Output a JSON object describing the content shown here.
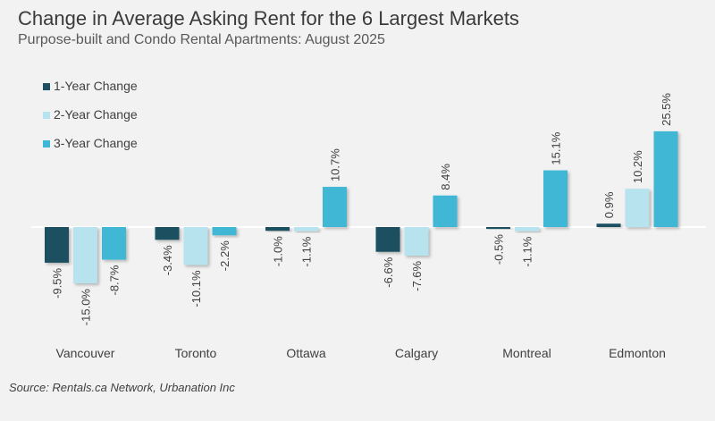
{
  "title": "Change in Average Asking Rent for the 6 Largest Markets",
  "subtitle": "Purpose-built and Condo Rental Apartments: August 2025",
  "source": "Source: Rentals.ca Network, Urbanation Inc",
  "colors": {
    "background": "#f2f2f2",
    "series": [
      "#1d4f5e",
      "#b7e3ef",
      "#3fb8d5"
    ],
    "baseline": "#ffffff",
    "text": "#404040"
  },
  "chart_data": {
    "type": "bar",
    "categories": [
      "Vancouver",
      "Toronto",
      "Ottawa",
      "Calgary",
      "Montreal",
      "Edmonton"
    ],
    "series": [
      {
        "name": "1-Year Change",
        "values": [
          -9.5,
          -3.4,
          -1.0,
          -6.6,
          -0.5,
          0.9
        ]
      },
      {
        "name": "2-Year Change",
        "values": [
          -15.0,
          -10.1,
          -1.1,
          -7.6,
          -1.1,
          10.2
        ]
      },
      {
        "name": "3-Year Change",
        "values": [
          -8.7,
          -2.2,
          10.7,
          8.4,
          15.1,
          25.5
        ]
      }
    ],
    "data_labels": [
      [
        "-9.5%",
        "-3.4%",
        "-1.0%",
        "-6.6%",
        "-0.5%",
        "0.9%"
      ],
      [
        "-15.0%",
        "-10.1%",
        "-1.1%",
        "-7.6%",
        "-1.1%",
        "10.2%"
      ],
      [
        "-8.7%",
        "-2.2%",
        "10.7%",
        "8.4%",
        "15.1%",
        "25.5%"
      ]
    ],
    "ylim": [
      -15,
      25.5
    ],
    "grid": false,
    "legend": "top-left"
  }
}
